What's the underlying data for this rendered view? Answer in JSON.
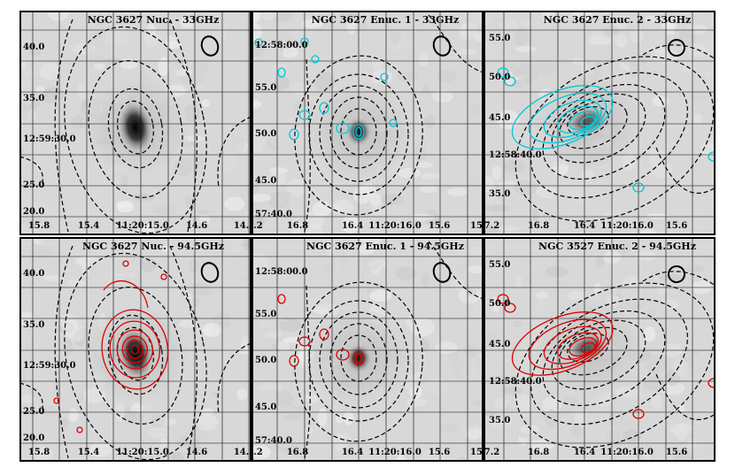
{
  "panels": [
    {
      "title": "NGC 3627 Nuc. - 33GHz",
      "y_ticks": [
        "40.0",
        "35.0",
        "12:59:30.0",
        "25.0",
        "20.0"
      ],
      "x_ticks": [
        "15.8",
        "15.4",
        "11:20:15.0",
        "14.6",
        "14.2"
      ],
      "overlay": "none"
    },
    {
      "title": "NGC 3627 Enuc. 1 - 33GHz",
      "y_ticks": [
        "12:58:00.0",
        "55.0",
        "50.0",
        "45.0",
        "57:40.0"
      ],
      "x_ticks": [
        "7.2",
        "16.8",
        "16.4",
        "11:20:16.0",
        "15.6",
        "15"
      ],
      "overlay": "cyan"
    },
    {
      "title": "NGC 3627 Enuc. 2 - 33GHz",
      "y_ticks": [
        "55.0",
        "50.0",
        "45.0",
        "12:58:40.0",
        "35.0"
      ],
      "x_ticks": [
        "17.2",
        "16.8",
        "16.4",
        "11:20:16.0",
        "15.6"
      ],
      "overlay": "cyan"
    },
    {
      "title": "NGC 3627 Nuc. - 94.5GHz",
      "y_ticks": [
        "40.0",
        "35.0",
        "12:59:30.0",
        "25.0",
        "20.0"
      ],
      "x_ticks": [
        "15.8",
        "15.4",
        "11:20:15.0",
        "14.6",
        "14.2"
      ],
      "overlay": "red"
    },
    {
      "title": "NGC 3627 Enuc. 1 - 94.5GHz",
      "y_ticks": [
        "12:58:00.0",
        "55.0",
        "50.0",
        "45.0",
        "57:40.0"
      ],
      "x_ticks": [
        "7.2",
        "16.8",
        "16.4",
        "11:20:16.0",
        "15.6",
        "15"
      ],
      "overlay": "red"
    },
    {
      "title": "NGC 3527 Enuc. 2 - 94.5GHz",
      "y_ticks": [
        "55.0",
        "50.0",
        "45.0",
        "12:58:40.0",
        "35.0"
      ],
      "x_ticks": [
        "17.2",
        "16.8",
        "16.4",
        "11:20:16.0",
        "15.6"
      ],
      "overlay": "red"
    }
  ],
  "colors": {
    "dashed_contours": "#000000",
    "cyan_contours": "#00c8d8",
    "red_contours": "#e00000",
    "background": "#d8d8d8"
  }
}
